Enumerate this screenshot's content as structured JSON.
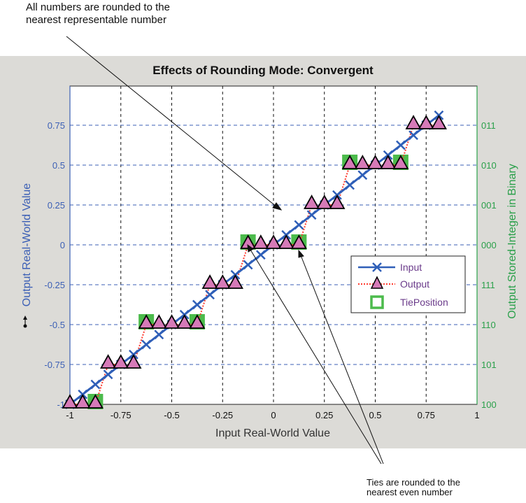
{
  "annotations": {
    "top_line1": "All numbers are rounded to the",
    "top_line2": "nearest representable number",
    "bottom_line1": "Ties are rounded to the",
    "bottom_line2": "nearest even number"
  },
  "colors": {
    "figure_bg": "#dcdbd7",
    "input": "#2f5fb8",
    "output_line": "#ff3b2f",
    "output_marker": "#d67ab8",
    "tie": "#4cbb4c",
    "left_axis": "#3b5fb5",
    "right_axis": "#2aa04a"
  },
  "chart_data": {
    "type": "line",
    "title": "Effects of Rounding Mode: Convergent",
    "xlabel": "Input Real-World Value",
    "ylabel": "Output Real-World Value",
    "ylabel_right": "Output Stored-Integer in Binary",
    "xlim": [
      -1,
      1
    ],
    "ylim": [
      -1,
      1
    ],
    "x_ticks": [
      "-1",
      "-0.75",
      "-0.5",
      "-0.25",
      "0",
      "0.25",
      "0.5",
      "0.75",
      "1"
    ],
    "y_ticks": [
      "-1",
      "-0.75",
      "-0.5",
      "-0.25",
      "0",
      "0.25",
      "0.5",
      "0.75"
    ],
    "y_ticks_right": [
      "100",
      "101",
      "110",
      "111",
      "000",
      "001",
      "010",
      "011"
    ],
    "grid": true,
    "legend": {
      "position": "inside lower right",
      "entries": [
        "Input",
        "Output",
        "TiePosition"
      ]
    },
    "x": [
      -1,
      -0.9375,
      -0.875,
      -0.8125,
      -0.75,
      -0.6875,
      -0.625,
      -0.5625,
      -0.5,
      -0.4375,
      -0.375,
      -0.3125,
      -0.25,
      -0.1875,
      -0.125,
      -0.0625,
      0,
      0.0625,
      0.125,
      0.1875,
      0.25,
      0.3125,
      0.375,
      0.4375,
      0.5,
      0.5625,
      0.625,
      0.6875,
      0.75,
      0.8125
    ],
    "series": [
      {
        "name": "Input",
        "values": [
          -1,
          -0.9375,
          -0.875,
          -0.8125,
          -0.75,
          -0.6875,
          -0.625,
          -0.5625,
          -0.5,
          -0.4375,
          -0.375,
          -0.3125,
          -0.25,
          -0.1875,
          -0.125,
          -0.0625,
          0,
          0.0625,
          0.125,
          0.1875,
          0.25,
          0.3125,
          0.375,
          0.4375,
          0.5,
          0.5625,
          0.625,
          0.6875,
          0.75,
          0.8125
        ]
      },
      {
        "name": "Output",
        "values": [
          -1,
          -1,
          -1,
          -0.75,
          -0.75,
          -0.75,
          -0.5,
          -0.5,
          -0.5,
          -0.5,
          -0.5,
          -0.25,
          -0.25,
          -0.25,
          0,
          0,
          0,
          0,
          0,
          0.25,
          0.25,
          0.25,
          0.5,
          0.5,
          0.5,
          0.5,
          0.5,
          0.75,
          0.75,
          0.75
        ]
      },
      {
        "name": "TiePosition",
        "x": [
          -0.875,
          -0.625,
          -0.375,
          -0.125,
          0.125,
          0.375,
          0.625
        ],
        "values": [
          -1,
          -0.5,
          -0.5,
          0,
          0,
          0.5,
          0.5
        ]
      }
    ]
  }
}
